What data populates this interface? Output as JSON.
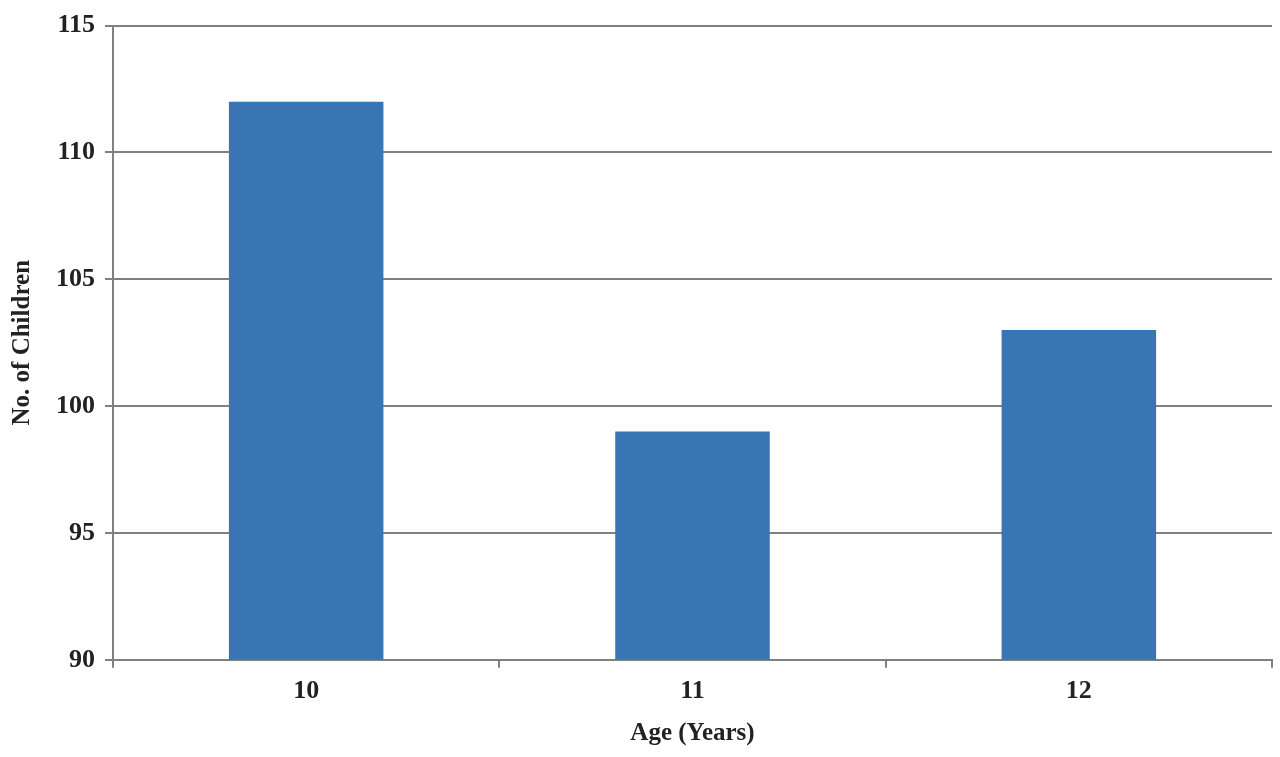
{
  "chart_data": {
    "type": "bar",
    "x_label": "Age (Years)",
    "y_label": "No. of Children",
    "categories": [
      "10",
      "11",
      "12"
    ],
    "values": [
      112,
      99,
      103
    ],
    "color": "#3a75b3",
    "ylim": [
      90,
      115
    ],
    "yticks": [
      90,
      95,
      100,
      105,
      110,
      115
    ],
    "grid": true
  }
}
